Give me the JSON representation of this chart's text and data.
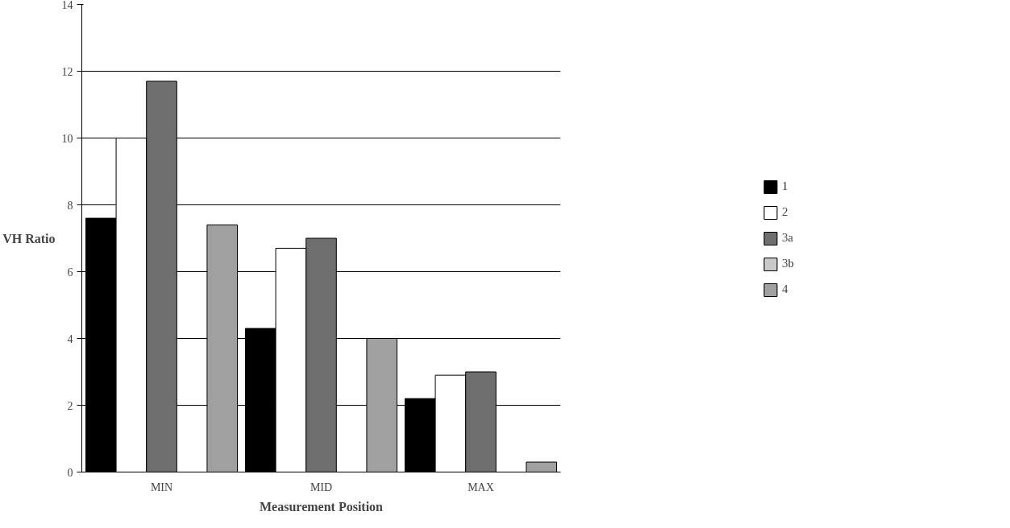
{
  "chart_data": {
    "type": "bar",
    "xlabel": "Measurement Position",
    "ylabel": "VH Ratio",
    "categories": [
      "MIN",
      "MID",
      "MAX"
    ],
    "series": [
      {
        "name": "1",
        "color": "#000000",
        "values": [
          7.6,
          4.3,
          2.2
        ]
      },
      {
        "name": "2",
        "color": "#ffffff",
        "values": [
          10.0,
          6.7,
          2.9
        ]
      },
      {
        "name": "3a",
        "color": "#6e6e6e",
        "values": [
          11.7,
          7.0,
          3.0
        ]
      },
      {
        "name": "3b",
        "color": "#c8c8c8",
        "values": [
          null,
          null,
          null
        ]
      },
      {
        "name": "4",
        "color": "#a0a0a0",
        "values": [
          7.4,
          4.0,
          0.3
        ]
      }
    ],
    "ylim": [
      0,
      14
    ],
    "yticks": [
      0,
      2,
      4,
      6,
      8,
      10,
      12,
      14
    ],
    "grid": "y",
    "legend": "right"
  }
}
